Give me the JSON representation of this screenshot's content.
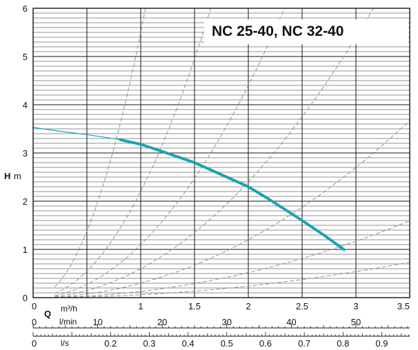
{
  "chart_data": {
    "type": "line",
    "title": "NC 25-40,  NC 32-40",
    "ylabel_symbol": "H",
    "ylabel_unit": "m",
    "ylim": [
      0,
      6
    ],
    "y_ticks": [
      "0",
      "1",
      "2",
      "3",
      "4",
      "5",
      "6"
    ],
    "x_axes": [
      {
        "symbol": "Q",
        "unit": "m³/h",
        "range": [
          0,
          3.5
        ],
        "tick_labels": [
          "0",
          "1",
          "1.5",
          "2",
          "2.5",
          "3",
          "3.5"
        ],
        "tick_values": [
          0,
          1,
          1.5,
          2,
          2.5,
          3,
          3.5
        ]
      },
      {
        "unit": "l/min",
        "tick_labels": [
          "0",
          "10",
          "20",
          "30",
          "40",
          "50"
        ],
        "tick_values": [
          0,
          10,
          20,
          30,
          40,
          50
        ]
      },
      {
        "unit": "l/s",
        "tick_labels": [
          "0",
          "0.2",
          "0.3",
          "0.4",
          "0.5",
          "0.6",
          "0.7",
          "0.8",
          "0.9"
        ],
        "tick_values": [
          0,
          0.2,
          0.3,
          0.4,
          0.5,
          0.6,
          0.7,
          0.8,
          0.9
        ]
      }
    ],
    "series": [
      {
        "color": "#1aa3b0",
        "points": [
          [
            0,
            3.53
          ],
          [
            0.25,
            3.45
          ],
          [
            0.5,
            3.38
          ],
          [
            0.8,
            3.28
          ],
          [
            1.0,
            3.18
          ],
          [
            1.2,
            3.03
          ],
          [
            1.5,
            2.8
          ],
          [
            1.8,
            2.5
          ],
          [
            2.0,
            2.3
          ],
          [
            2.2,
            2.03
          ],
          [
            2.5,
            1.6
          ],
          [
            2.7,
            1.3
          ],
          [
            2.9,
            0.98
          ]
        ],
        "thin_until_x": 0.8
      }
    ],
    "system_curve_coefficients": [
      5.5,
      2.2,
      1.1,
      0.6,
      0.3,
      0.13,
      0.06
    ],
    "grid": true
  }
}
